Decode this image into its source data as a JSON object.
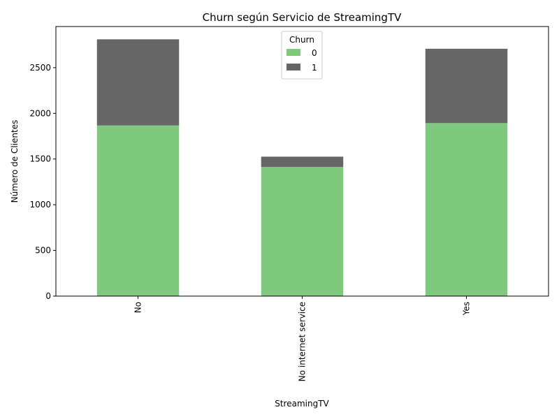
{
  "chart_data": {
    "type": "bar",
    "stacked": true,
    "title": "Churn según Servicio de StreamingTV",
    "xlabel": "StreamingTV",
    "ylabel": "Número de Clientes",
    "categories": [
      "No",
      "No internet service",
      "Yes"
    ],
    "series": [
      {
        "name": "0",
        "color": "#7fc97f",
        "values": [
          1868,
          1413,
          1893
        ]
      },
      {
        "name": "1",
        "color": "#666666",
        "values": [
          942,
          113,
          814
        ]
      }
    ],
    "ylim": [
      0,
      2950
    ],
    "yticks": [
      0,
      500,
      1000,
      1500,
      2000,
      2500
    ],
    "legend": {
      "title": "Churn",
      "placement": "top-center"
    },
    "grid": false
  }
}
